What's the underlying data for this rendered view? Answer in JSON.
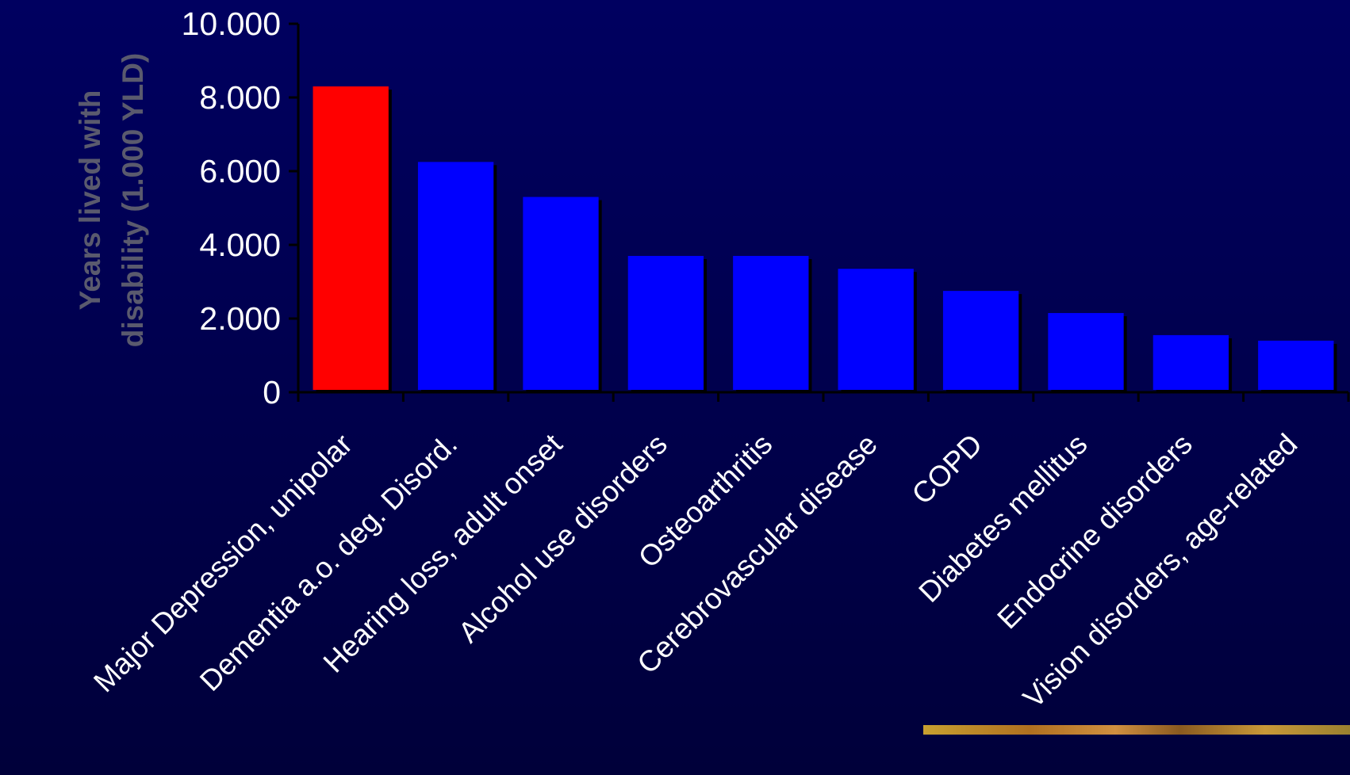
{
  "chart_data": {
    "type": "bar",
    "ylabel_lines": [
      "Years lived with",
      "disability (1.000 YLD)"
    ],
    "categories": [
      "Major Depression, unipolar",
      "Dementia a.o. deg. Disord.",
      "Hearing loss, adult onset",
      "Alcohol use disorders",
      "Osteoarthritis",
      "Cerebrovascular disease",
      "COPD",
      "Diabetes mellitus",
      "Endocrine disorders",
      "Vision disorders, age-related"
    ],
    "values": [
      8300,
      6250,
      5300,
      3700,
      3700,
      3350,
      2750,
      2150,
      1550,
      1400
    ],
    "ylim": [
      0,
      10000
    ],
    "yticks": [
      0,
      2000,
      4000,
      6000,
      8000,
      10000
    ],
    "ytick_labels": [
      "0",
      "2.000",
      "4.000",
      "6.000",
      "8.000",
      "10.000"
    ],
    "highlight_index": 0,
    "colors": {
      "highlight": "#ff0000",
      "bar": "#0000ff",
      "shadow": "#000000",
      "text": "#ffffff",
      "ylabel": "#5a5a6e"
    },
    "grid": false,
    "legend": "none"
  }
}
